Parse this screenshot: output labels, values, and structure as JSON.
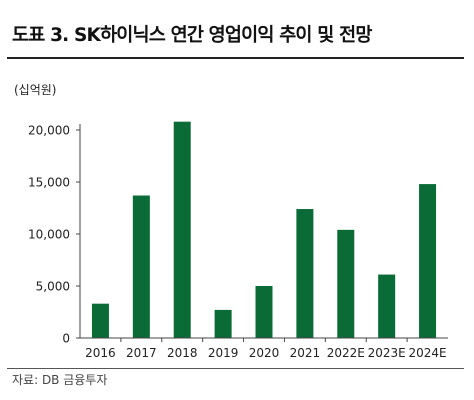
{
  "title": "도표 3. SK하이닉스 연간 영업이익 추이 및 전망",
  "source": "자료: DB 금융투자",
  "chart_data": {
    "type": "bar",
    "title": "도표 3. SK하이닉스 연간 영업이익 추이 및 전망",
    "unit_label": "(십억원)",
    "xlabel": "",
    "ylabel": "",
    "categories": [
      "2016",
      "2017",
      "2018",
      "2019",
      "2020",
      "2021",
      "2022E",
      "2023E",
      "2024E"
    ],
    "values": [
      3300,
      13700,
      20800,
      2700,
      5000,
      12400,
      10400,
      6100,
      14800
    ],
    "ylim": [
      0,
      20000
    ],
    "yticks": [
      0,
      5000,
      10000,
      15000,
      20000
    ],
    "ytick_labels": [
      "0",
      "5,000",
      "10,000",
      "15,000",
      "20,000"
    ],
    "bar_color": "#0b6b37",
    "grid": false,
    "legend": "none"
  }
}
